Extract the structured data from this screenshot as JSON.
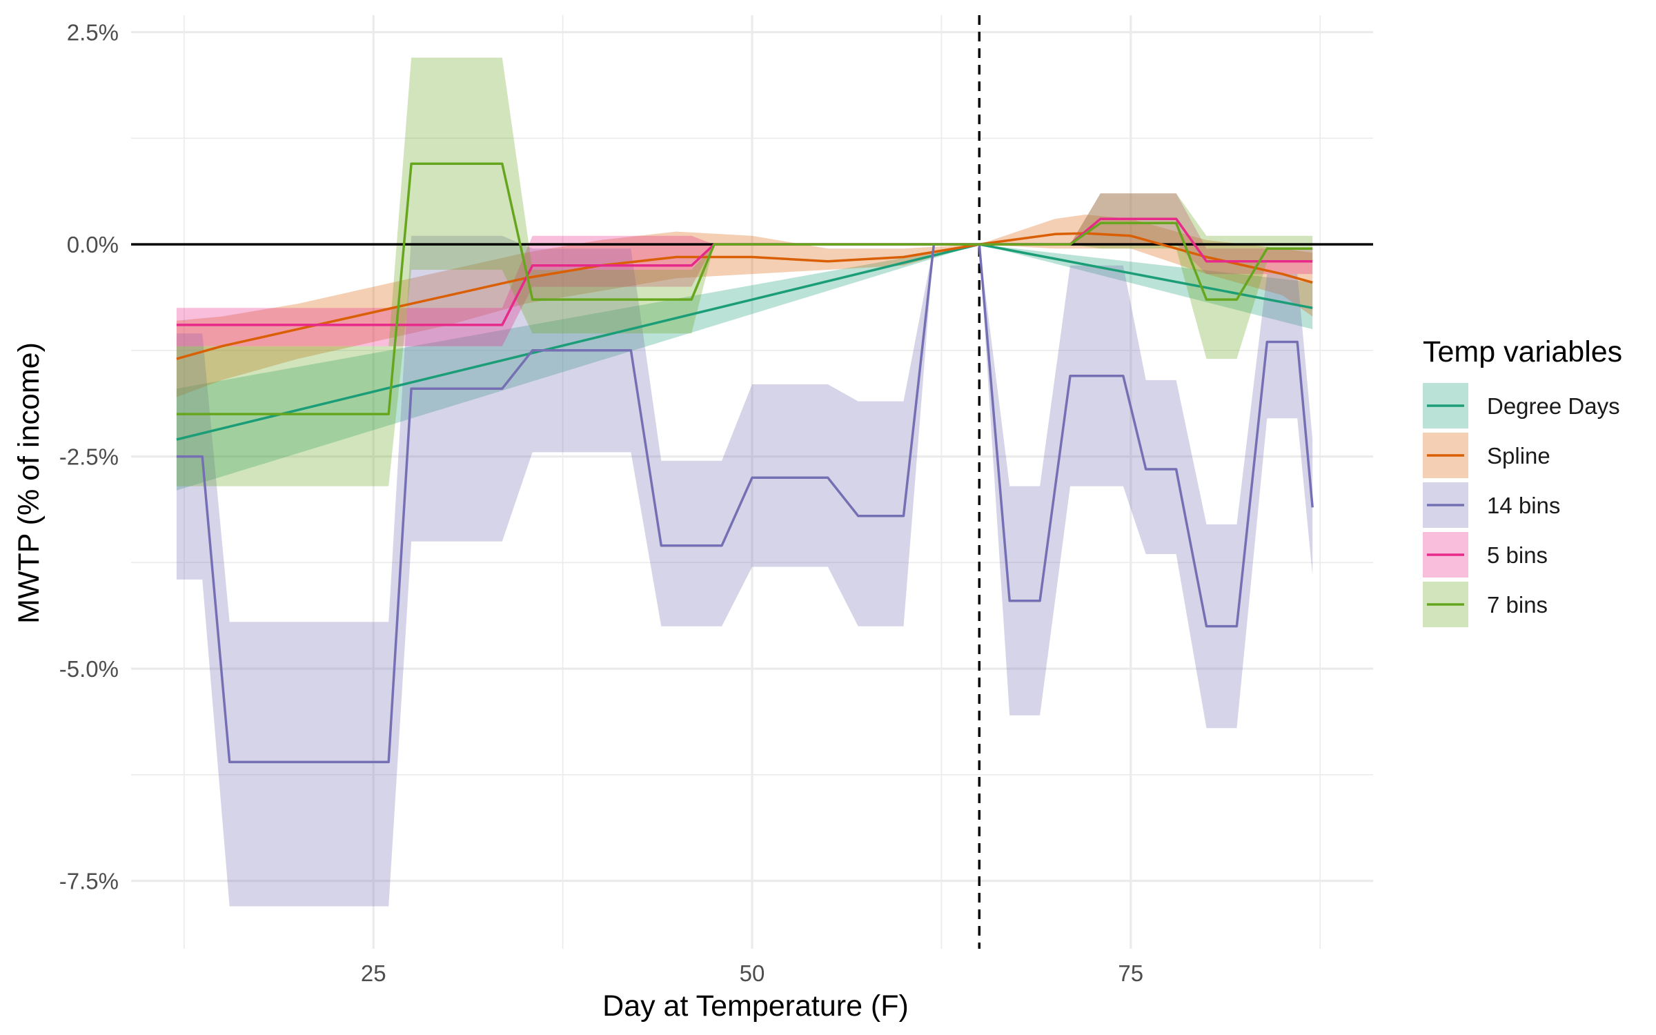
{
  "chart_data": {
    "type": "line",
    "xlabel": "Day at Temperature (F)",
    "ylabel": "MWTP (% of income)",
    "xlim": [
      9,
      91
    ],
    "ylim": [
      -8.3,
      2.7
    ],
    "x_ticks": [
      25,
      50,
      75
    ],
    "x_tick_labels": [
      "25",
      "50",
      "75"
    ],
    "y_ticks": [
      2.5,
      0.0,
      -2.5,
      -5.0,
      -7.5
    ],
    "y_tick_labels": [
      "2.5%",
      "0.0%",
      "-2.5%",
      "-5.0%",
      "-7.5%"
    ],
    "grid": true,
    "reference_lines": {
      "horizontal_y": 0,
      "vertical_x": 65
    },
    "legend": {
      "title": "Temp variables",
      "position": "right"
    },
    "series": [
      {
        "name": "Degree Days",
        "color": "#1b9e77",
        "x": [
          12,
          65,
          87
        ],
        "y": [
          -2.3,
          0.0,
          -0.75
        ],
        "lower": [
          -2.9,
          0.0,
          -1.0
        ],
        "upper": [
          -1.7,
          0.0,
          -0.45
        ]
      },
      {
        "name": "Spline",
        "color": "#d95f02",
        "x": [
          12,
          15,
          20,
          25,
          30,
          35,
          40,
          45,
          50,
          55,
          60,
          65,
          70,
          72,
          75,
          80,
          85,
          87
        ],
        "y": [
          -1.35,
          -1.2,
          -1.0,
          -0.8,
          -0.6,
          -0.4,
          -0.25,
          -0.15,
          -0.15,
          -0.2,
          -0.15,
          0.0,
          0.12,
          0.13,
          0.1,
          -0.15,
          -0.35,
          -0.45
        ],
        "lower": [
          -1.8,
          -1.6,
          -1.35,
          -1.15,
          -0.95,
          -0.7,
          -0.55,
          -0.4,
          -0.35,
          -0.3,
          -0.25,
          0.0,
          -0.05,
          -0.05,
          -0.05,
          -0.35,
          -0.6,
          -0.85
        ],
        "upper": [
          -0.9,
          -0.85,
          -0.7,
          -0.5,
          -0.3,
          -0.1,
          0.05,
          0.15,
          0.1,
          -0.05,
          -0.05,
          0.0,
          0.3,
          0.35,
          0.3,
          0.05,
          -0.05,
          -0.1
        ]
      },
      {
        "name": "14 bins",
        "color": "#7570b3",
        "x": [
          12,
          13.7,
          15.5,
          26,
          27.5,
          33.5,
          35.5,
          42,
          44,
          48,
          50,
          55,
          57,
          60,
          62,
          65,
          67,
          69,
          71,
          74.5,
          76,
          78,
          80,
          82,
          84,
          86,
          87
        ],
        "y": [
          -2.5,
          -2.5,
          -6.1,
          -6.1,
          -1.7,
          -1.7,
          -1.25,
          -1.25,
          -3.55,
          -3.55,
          -2.75,
          -2.75,
          -3.2,
          -3.2,
          0.0,
          0.0,
          -4.2,
          -4.2,
          -1.55,
          -1.55,
          -2.65,
          -2.65,
          -4.5,
          -4.5,
          -1.15,
          -1.15,
          -3.1
        ],
        "lower": [
          -3.95,
          -3.95,
          -7.8,
          -7.8,
          -3.5,
          -3.5,
          -2.45,
          -2.45,
          -4.5,
          -4.5,
          -3.8,
          -3.8,
          -4.5,
          -4.5,
          0.0,
          0.0,
          -5.55,
          -5.55,
          -2.85,
          -2.85,
          -3.65,
          -3.65,
          -5.7,
          -5.7,
          -2.05,
          -2.05,
          -3.9
        ],
        "upper": [
          -1.05,
          -1.05,
          -4.45,
          -4.45,
          0.1,
          0.1,
          -0.05,
          -0.05,
          -2.55,
          -2.55,
          -1.65,
          -1.65,
          -1.85,
          -1.85,
          0.0,
          0.0,
          -2.85,
          -2.85,
          -0.25,
          -0.25,
          -1.6,
          -1.6,
          -3.3,
          -3.3,
          -0.35,
          -0.35,
          -2.3
        ]
      },
      {
        "name": "5 bins",
        "color": "#e7298a",
        "x": [
          12,
          33.5,
          35.5,
          46,
          47.5,
          65,
          71,
          73,
          78,
          80,
          87
        ],
        "y": [
          -0.95,
          -0.95,
          -0.25,
          -0.25,
          0.0,
          0.0,
          0.0,
          0.3,
          0.3,
          -0.2,
          -0.2
        ],
        "lower": [
          -1.2,
          -1.2,
          -0.5,
          -0.5,
          0.0,
          0.0,
          0.0,
          0.0,
          0.0,
          -0.35,
          -0.35
        ],
        "upper": [
          -0.75,
          -0.75,
          0.1,
          0.1,
          0.0,
          0.0,
          0.0,
          0.6,
          0.6,
          -0.05,
          -0.05
        ]
      },
      {
        "name": "7 bins",
        "color": "#66a61e",
        "x": [
          12,
          26,
          27.5,
          33.5,
          35.5,
          46,
          47.5,
          65,
          71,
          73,
          78,
          80,
          82,
          84,
          87
        ],
        "y": [
          -2.0,
          -2.0,
          0.95,
          0.95,
          -0.65,
          -0.65,
          0.0,
          0.0,
          0.0,
          0.25,
          0.25,
          -0.65,
          -0.65,
          -0.05,
          -0.05
        ],
        "lower": [
          -2.85,
          -2.85,
          -0.3,
          -0.3,
          -1.05,
          -1.05,
          0.0,
          0.0,
          0.0,
          -0.05,
          -0.05,
          -1.35,
          -1.35,
          -0.2,
          -0.2
        ],
        "upper": [
          -1.2,
          -1.2,
          2.2,
          2.2,
          -0.3,
          -0.3,
          0.0,
          0.0,
          0.0,
          0.6,
          0.6,
          0.1,
          0.1,
          0.1,
          0.1
        ]
      }
    ]
  }
}
